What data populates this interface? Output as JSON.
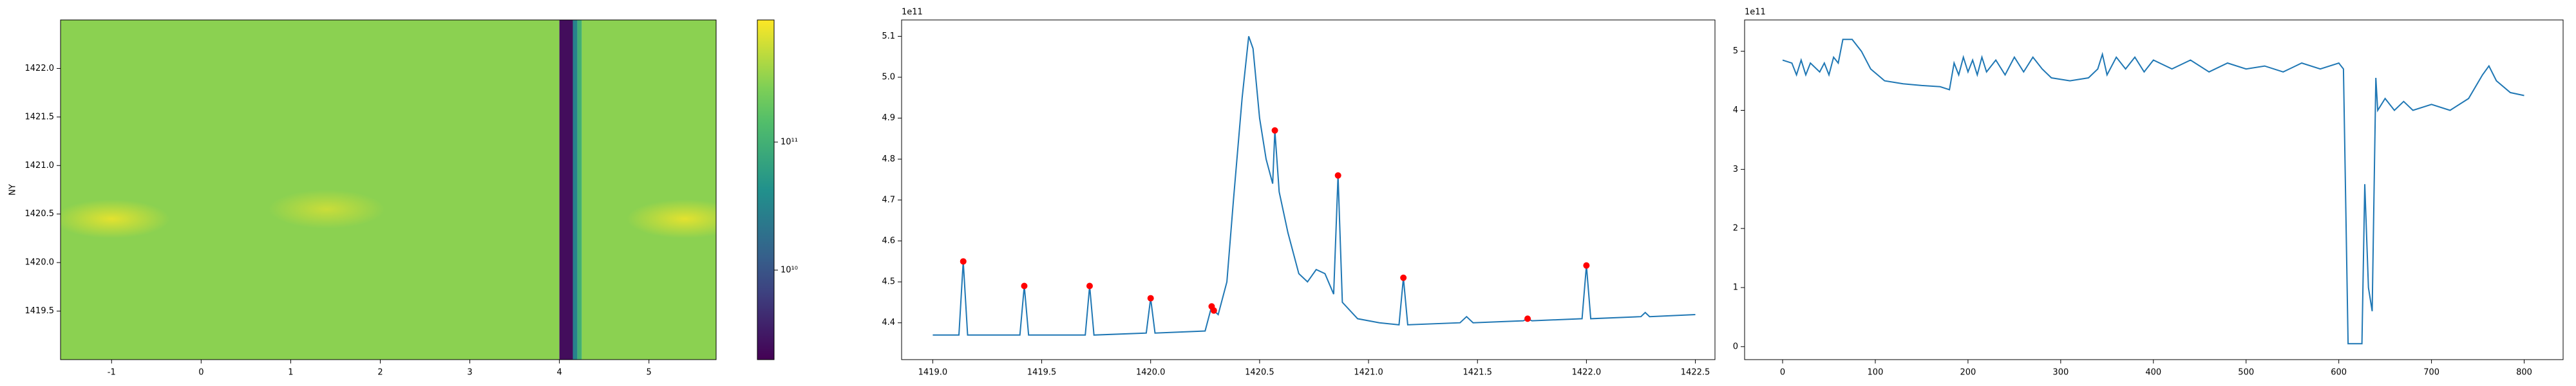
{
  "chart_data": [
    {
      "type": "heatmap",
      "ylabel": "NY",
      "colormap": "viridis",
      "xlim": [
        -1.57,
        5.75
      ],
      "ylim": [
        1419.0,
        1422.5
      ],
      "xticks": [
        -1,
        0,
        1,
        2,
        3,
        4,
        5
      ],
      "yticks": [
        1419.5,
        {
          "value": 1420,
          "label": "1420.0"
        },
        1420.5,
        {
          "value": 1421,
          "label": "1421.0"
        },
        1421.5,
        {
          "value": 1422,
          "label": "1422.0"
        }
      ],
      "columns": {
        "edges": [
          -1.57,
          4.0,
          4.15,
          4.2,
          4.25,
          5.75
        ],
        "values": [
          300000000000,
          2500000000,
          30000000000,
          100000000000,
          300000000000
        ]
      },
      "hotspots": {
        "x": [
          -1.0,
          1.4,
          5.4
        ],
        "y": [
          1420.45,
          1420.55,
          1420.45
        ],
        "values": [
          700000000000,
          550000000000,
          700000000000
        ]
      },
      "colorbar": {
        "scale": "log",
        "lim": [
          2000000000,
          900000000000
        ],
        "ticks": [
          {
            "value": 10000000000,
            "label": "10¹⁰"
          },
          {
            "value": 100000000000,
            "label": "10¹¹"
          }
        ]
      }
    },
    {
      "type": "line",
      "offset_text": "1e11",
      "color": "#1f77b4",
      "xlim": [
        1418.857,
        1422.59
      ],
      "ylim": [
        4.31,
        5.14
      ],
      "xticks": [
        {
          "value": 1419,
          "label": "1419.0"
        },
        1419.5,
        {
          "value": 1420,
          "label": "1420.0"
        },
        1420.5,
        {
          "value": 1421,
          "label": "1421.0"
        },
        1421.5,
        {
          "value": 1422,
          "label": "1422.0"
        },
        1422.5
      ],
      "yticks": [
        4.4,
        4.5,
        4.6,
        4.7,
        4.8,
        4.9,
        {
          "value": 5,
          "label": "5.0"
        },
        5.1
      ],
      "x": [
        1419.0,
        1419.12,
        1419.14,
        1419.16,
        1419.4,
        1419.42,
        1419.44,
        1419.7,
        1419.72,
        1419.74,
        1419.98,
        1420.0,
        1420.02,
        1420.25,
        1420.28,
        1420.29,
        1420.31,
        1420.35,
        1420.38,
        1420.42,
        1420.45,
        1420.47,
        1420.5,
        1420.53,
        1420.56,
        1420.57,
        1420.59,
        1420.63,
        1420.68,
        1420.72,
        1420.76,
        1420.8,
        1420.84,
        1420.86,
        1420.88,
        1420.95,
        1421.05,
        1421.14,
        1421.16,
        1421.18,
        1421.42,
        1421.45,
        1421.48,
        1421.71,
        1421.73,
        1421.75,
        1421.98,
        1422.0,
        1422.02,
        1422.25,
        1422.27,
        1422.29,
        1422.5
      ],
      "values": [
        4.37,
        4.37,
        4.55,
        4.37,
        4.37,
        4.49,
        4.37,
        4.37,
        4.49,
        4.37,
        4.375,
        4.46,
        4.375,
        4.38,
        4.44,
        4.43,
        4.42,
        4.5,
        4.7,
        4.95,
        5.1,
        5.07,
        4.9,
        4.8,
        4.74,
        4.87,
        4.72,
        4.62,
        4.52,
        4.5,
        4.53,
        4.52,
        4.47,
        4.76,
        4.45,
        4.41,
        4.4,
        4.395,
        4.51,
        4.395,
        4.4,
        4.415,
        4.4,
        4.405,
        4.41,
        4.405,
        4.41,
        4.54,
        4.41,
        4.415,
        4.425,
        4.415,
        4.42
      ],
      "peaks": {
        "color": "#ff0000",
        "x": [
          1419.14,
          1419.42,
          1419.72,
          1420.0,
          1420.28,
          1420.29,
          1420.57,
          1420.86,
          1421.16,
          1421.73,
          1422.0
        ],
        "values": [
          4.55,
          4.49,
          4.49,
          4.46,
          4.44,
          4.43,
          4.87,
          4.76,
          4.51,
          4.41,
          4.54
        ]
      }
    },
    {
      "type": "line",
      "offset_text": "1e11",
      "color": "#1f77b4",
      "xlim": [
        -41,
        842
      ],
      "ylim": [
        -0.22,
        5.53
      ],
      "xticks": [
        0,
        100,
        200,
        300,
        400,
        500,
        600,
        700,
        800
      ],
      "yticks": [
        0,
        1,
        2,
        3,
        4,
        5
      ],
      "x": [
        0,
        10,
        15,
        20,
        25,
        30,
        40,
        45,
        50,
        55,
        60,
        65,
        75,
        85,
        95,
        110,
        130,
        150,
        170,
        180,
        185,
        190,
        195,
        200,
        205,
        210,
        215,
        220,
        230,
        240,
        250,
        260,
        270,
        280,
        290,
        310,
        330,
        340,
        345,
        350,
        360,
        370,
        380,
        390,
        400,
        420,
        440,
        460,
        480,
        500,
        520,
        540,
        560,
        580,
        600,
        605,
        610,
        625,
        628,
        632,
        636,
        640,
        642,
        650,
        660,
        670,
        680,
        700,
        720,
        740,
        755,
        762,
        770,
        785,
        800
      ],
      "values": [
        4.85,
        4.8,
        4.6,
        4.85,
        4.6,
        4.8,
        4.65,
        4.8,
        4.6,
        4.9,
        4.8,
        5.2,
        5.2,
        5.0,
        4.7,
        4.5,
        4.45,
        4.42,
        4.4,
        4.35,
        4.8,
        4.6,
        4.9,
        4.65,
        4.85,
        4.6,
        4.9,
        4.65,
        4.85,
        4.6,
        4.9,
        4.65,
        4.9,
        4.7,
        4.55,
        4.5,
        4.55,
        4.7,
        4.95,
        4.6,
        4.9,
        4.7,
        4.9,
        4.65,
        4.85,
        4.7,
        4.85,
        4.65,
        4.8,
        4.7,
        4.75,
        4.65,
        4.8,
        4.7,
        4.8,
        4.7,
        0.05,
        0.05,
        2.75,
        1.0,
        0.6,
        4.55,
        4.0,
        4.2,
        4.0,
        4.15,
        4.0,
        4.1,
        4.0,
        4.2,
        4.6,
        4.75,
        4.5,
        4.3,
        4.25
      ]
    }
  ]
}
